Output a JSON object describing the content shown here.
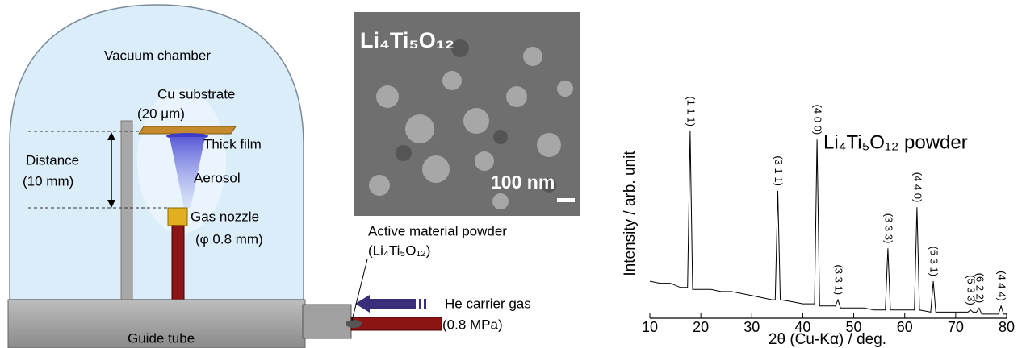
{
  "diagram": {
    "chamber": "Vacuum chamber",
    "substrate": "Cu substrate",
    "substrate_thickness": "(20 μm)",
    "film": "Thick film",
    "distance": "Distance",
    "distance_value": "(10 mm)",
    "aerosol": "Aerosol",
    "nozzle": "Gas nozzle",
    "nozzle_size": "(φ 0.8 mm)",
    "guide_tube": "Guide tube",
    "powder": "Active material powder",
    "powder_formula": "(Li₄Ti₅O₁₂)",
    "gas": "He carrier gas",
    "gas_pressure": "(0.8 MPa)"
  },
  "sem_image": {
    "title": "Li₄Ti₅O₁₂",
    "scale_bar": "100 nm"
  },
  "chart_data": {
    "type": "line",
    "label": "Li₄Ti₅O₁₂ powder",
    "x_label": "2θ (Cu-Kα) / deg.",
    "y_label": "Intensity / arb. unit",
    "color": "#000000",
    "x": [
      10,
      12,
      14,
      16,
      17.4,
      17.9,
      18.4,
      20,
      22,
      24,
      26,
      28,
      30,
      32,
      34,
      34.6,
      35.1,
      35.6,
      38,
      40,
      42.3,
      42.8,
      43.3,
      46.4,
      46.9,
      47.4,
      50,
      52,
      54,
      56.2,
      56.7,
      57.2,
      60,
      61.9,
      62.4,
      62.9,
      65.1,
      65.6,
      66.1,
      68,
      70,
      72.4,
      72.9,
      73.4,
      74.1,
      74.6,
      75.1,
      76,
      78.4,
      78.9,
      79.4,
      80
    ],
    "values": [
      18,
      17,
      17,
      15,
      15,
      91,
      14,
      14,
      14,
      13,
      13,
      12,
      11,
      10,
      9,
      9,
      62,
      9,
      8,
      7,
      7,
      87,
      6,
      6,
      9,
      5,
      5,
      5,
      4,
      4,
      34,
      4,
      4,
      4,
      54,
      4,
      3,
      18,
      3,
      3,
      3,
      3,
      4,
      3,
      3,
      5,
      2,
      2,
      2,
      6,
      2,
      2
    ],
    "peak_labels": [
      {
        "label": "(1 1 1)",
        "x": 17.9
      },
      {
        "label": "(3 1 1)",
        "x": 35.1
      },
      {
        "label": "(4 0 0)",
        "x": 42.8
      },
      {
        "label": "(3 3 1)",
        "x": 46.9
      },
      {
        "label": "(3 3 3)",
        "x": 56.7
      },
      {
        "label": "(4 4 0)",
        "x": 62.4
      },
      {
        "label": "(5 3 1)",
        "x": 65.6
      },
      {
        "label": "(5 3 3)",
        "x": 72.9
      },
      {
        "label": "(6 2 2)",
        "x": 74.6
      },
      {
        "label": "(4 4 4)",
        "x": 78.9
      }
    ],
    "xlim": [
      10,
      80
    ],
    "ylim": [
      0,
      100
    ],
    "xticks": [
      10,
      20,
      30,
      40,
      50,
      60,
      70,
      80
    ]
  }
}
